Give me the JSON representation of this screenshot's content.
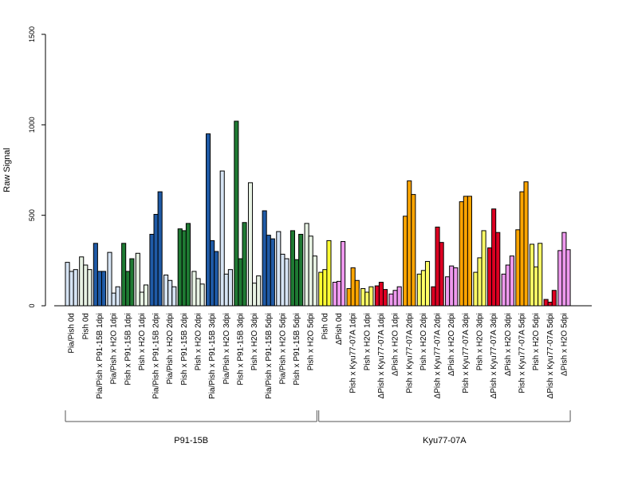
{
  "chart_data": {
    "type": "bar",
    "title": "",
    "xlabel": "",
    "ylabel": "Raw Signal",
    "ylim": [
      0,
      1500
    ],
    "y_ticks": [
      0,
      500,
      1000,
      1500
    ],
    "grid": false,
    "bars_per_group": 3,
    "categories": [
      "Pia/Pish 0d",
      "Pish 0d",
      "Pia/Pish x P91-15B 1dpi",
      "Pia/Pish x H2O 1dpi",
      "Pish x P91-15B 1dpi",
      "Pish x H2O 1dpi",
      "Pia/Pish x P91-15B 2dpi",
      "Pia/Pish x H2O 2dpi",
      "Pish x P91-15B 2dpi",
      "Pish x H2O 2dpi",
      "Pia/Pish x P91-15B 3dpi",
      "Pia/Pish x H2O 3dpi",
      "Pish x P91-15B 3dpi",
      "Pish x H2O 3dpi",
      "Pia/Pish x P91-15B 5dpi",
      "Pia/Pish x H2O 5dpi",
      "Pish x P91-15B 5dpi",
      "Pish x H2O 5dpi",
      "Pish 0d",
      "ΔPish 0d",
      "Pish x Kyu77-07A 1dpi",
      "Pish x H2O 1dpi",
      "ΔPish x Kyu77-07A 1dpi",
      "ΔPish x H2O 1dpi",
      "Pish x Kyu77-07A 2dpi",
      "Pish x H2O 2dpi",
      "ΔPish x Kyu77-07A 2dpi",
      "ΔPish x H2O 2dpi",
      "Pish x Kyu77-07A 3dpi",
      "Pish x H2O 3dpi",
      "ΔPish x Kyu77-07A 3dpi",
      "ΔPish x H2O 3dpi",
      "Pish x Kyu77-07A 5dpi",
      "Pish x H2O 5dpi",
      "ΔPish x Kyu77-07A 5dpi",
      "ΔPish x H2O 5dpi"
    ],
    "colors": [
      "#d6e4f4",
      "#e8f3e4",
      "#1f5aa6",
      "#d6e4f4",
      "#1f7a33",
      "#e8f3e4",
      "#1f5aa6",
      "#d6e4f4",
      "#1f7a33",
      "#e8f3e4",
      "#1f5aa6",
      "#d6e4f4",
      "#1f7a33",
      "#e8f3e4",
      "#1f5aa6",
      "#d6e4f4",
      "#1f7a33",
      "#e8f3e4",
      "#ffff33",
      "#ee99ee",
      "#ffa500",
      "#ffff66",
      "#dd0022",
      "#ee99ee",
      "#ffa500",
      "#ffff66",
      "#dd0022",
      "#ee99ee",
      "#ffa500",
      "#ffff66",
      "#dd0022",
      "#ee99ee",
      "#ffa500",
      "#ffff66",
      "#dd0022",
      "#ee99ee"
    ],
    "values": [
      [
        240,
        190,
        200
      ],
      [
        270,
        225,
        200
      ],
      [
        345,
        190,
        190
      ],
      [
        295,
        70,
        105
      ],
      [
        345,
        190,
        260
      ],
      [
        290,
        75,
        115
      ],
      [
        395,
        505,
        630
      ],
      [
        170,
        140,
        105
      ],
      [
        425,
        415,
        455
      ],
      [
        190,
        150,
        120
      ],
      [
        950,
        360,
        300
      ],
      [
        745,
        175,
        200
      ],
      [
        1020,
        260,
        460
      ],
      [
        680,
        125,
        165
      ],
      [
        525,
        390,
        370
      ],
      [
        410,
        285,
        260
      ],
      [
        415,
        255,
        395
      ],
      [
        455,
        385,
        275
      ],
      [
        185,
        200,
        360
      ],
      [
        130,
        135,
        355
      ],
      [
        95,
        210,
        140
      ],
      [
        95,
        75,
        105
      ],
      [
        110,
        130,
        90
      ],
      [
        65,
        85,
        105
      ],
      [
        495,
        690,
        615
      ],
      [
        175,
        195,
        245
      ],
      [
        105,
        435,
        350
      ],
      [
        160,
        220,
        210
      ],
      [
        575,
        605,
        605
      ],
      [
        185,
        265,
        415
      ],
      [
        320,
        535,
        405
      ],
      [
        175,
        225,
        275
      ],
      [
        420,
        630,
        685
      ],
      [
        340,
        215,
        345
      ],
      [
        35,
        20,
        85
      ],
      [
        305,
        405,
        310
      ]
    ],
    "group_labels": [
      {
        "label": "P91-15B",
        "from": 0,
        "to": 17
      },
      {
        "label": "Kyu77-07A",
        "from": 18,
        "to": 35
      }
    ]
  }
}
